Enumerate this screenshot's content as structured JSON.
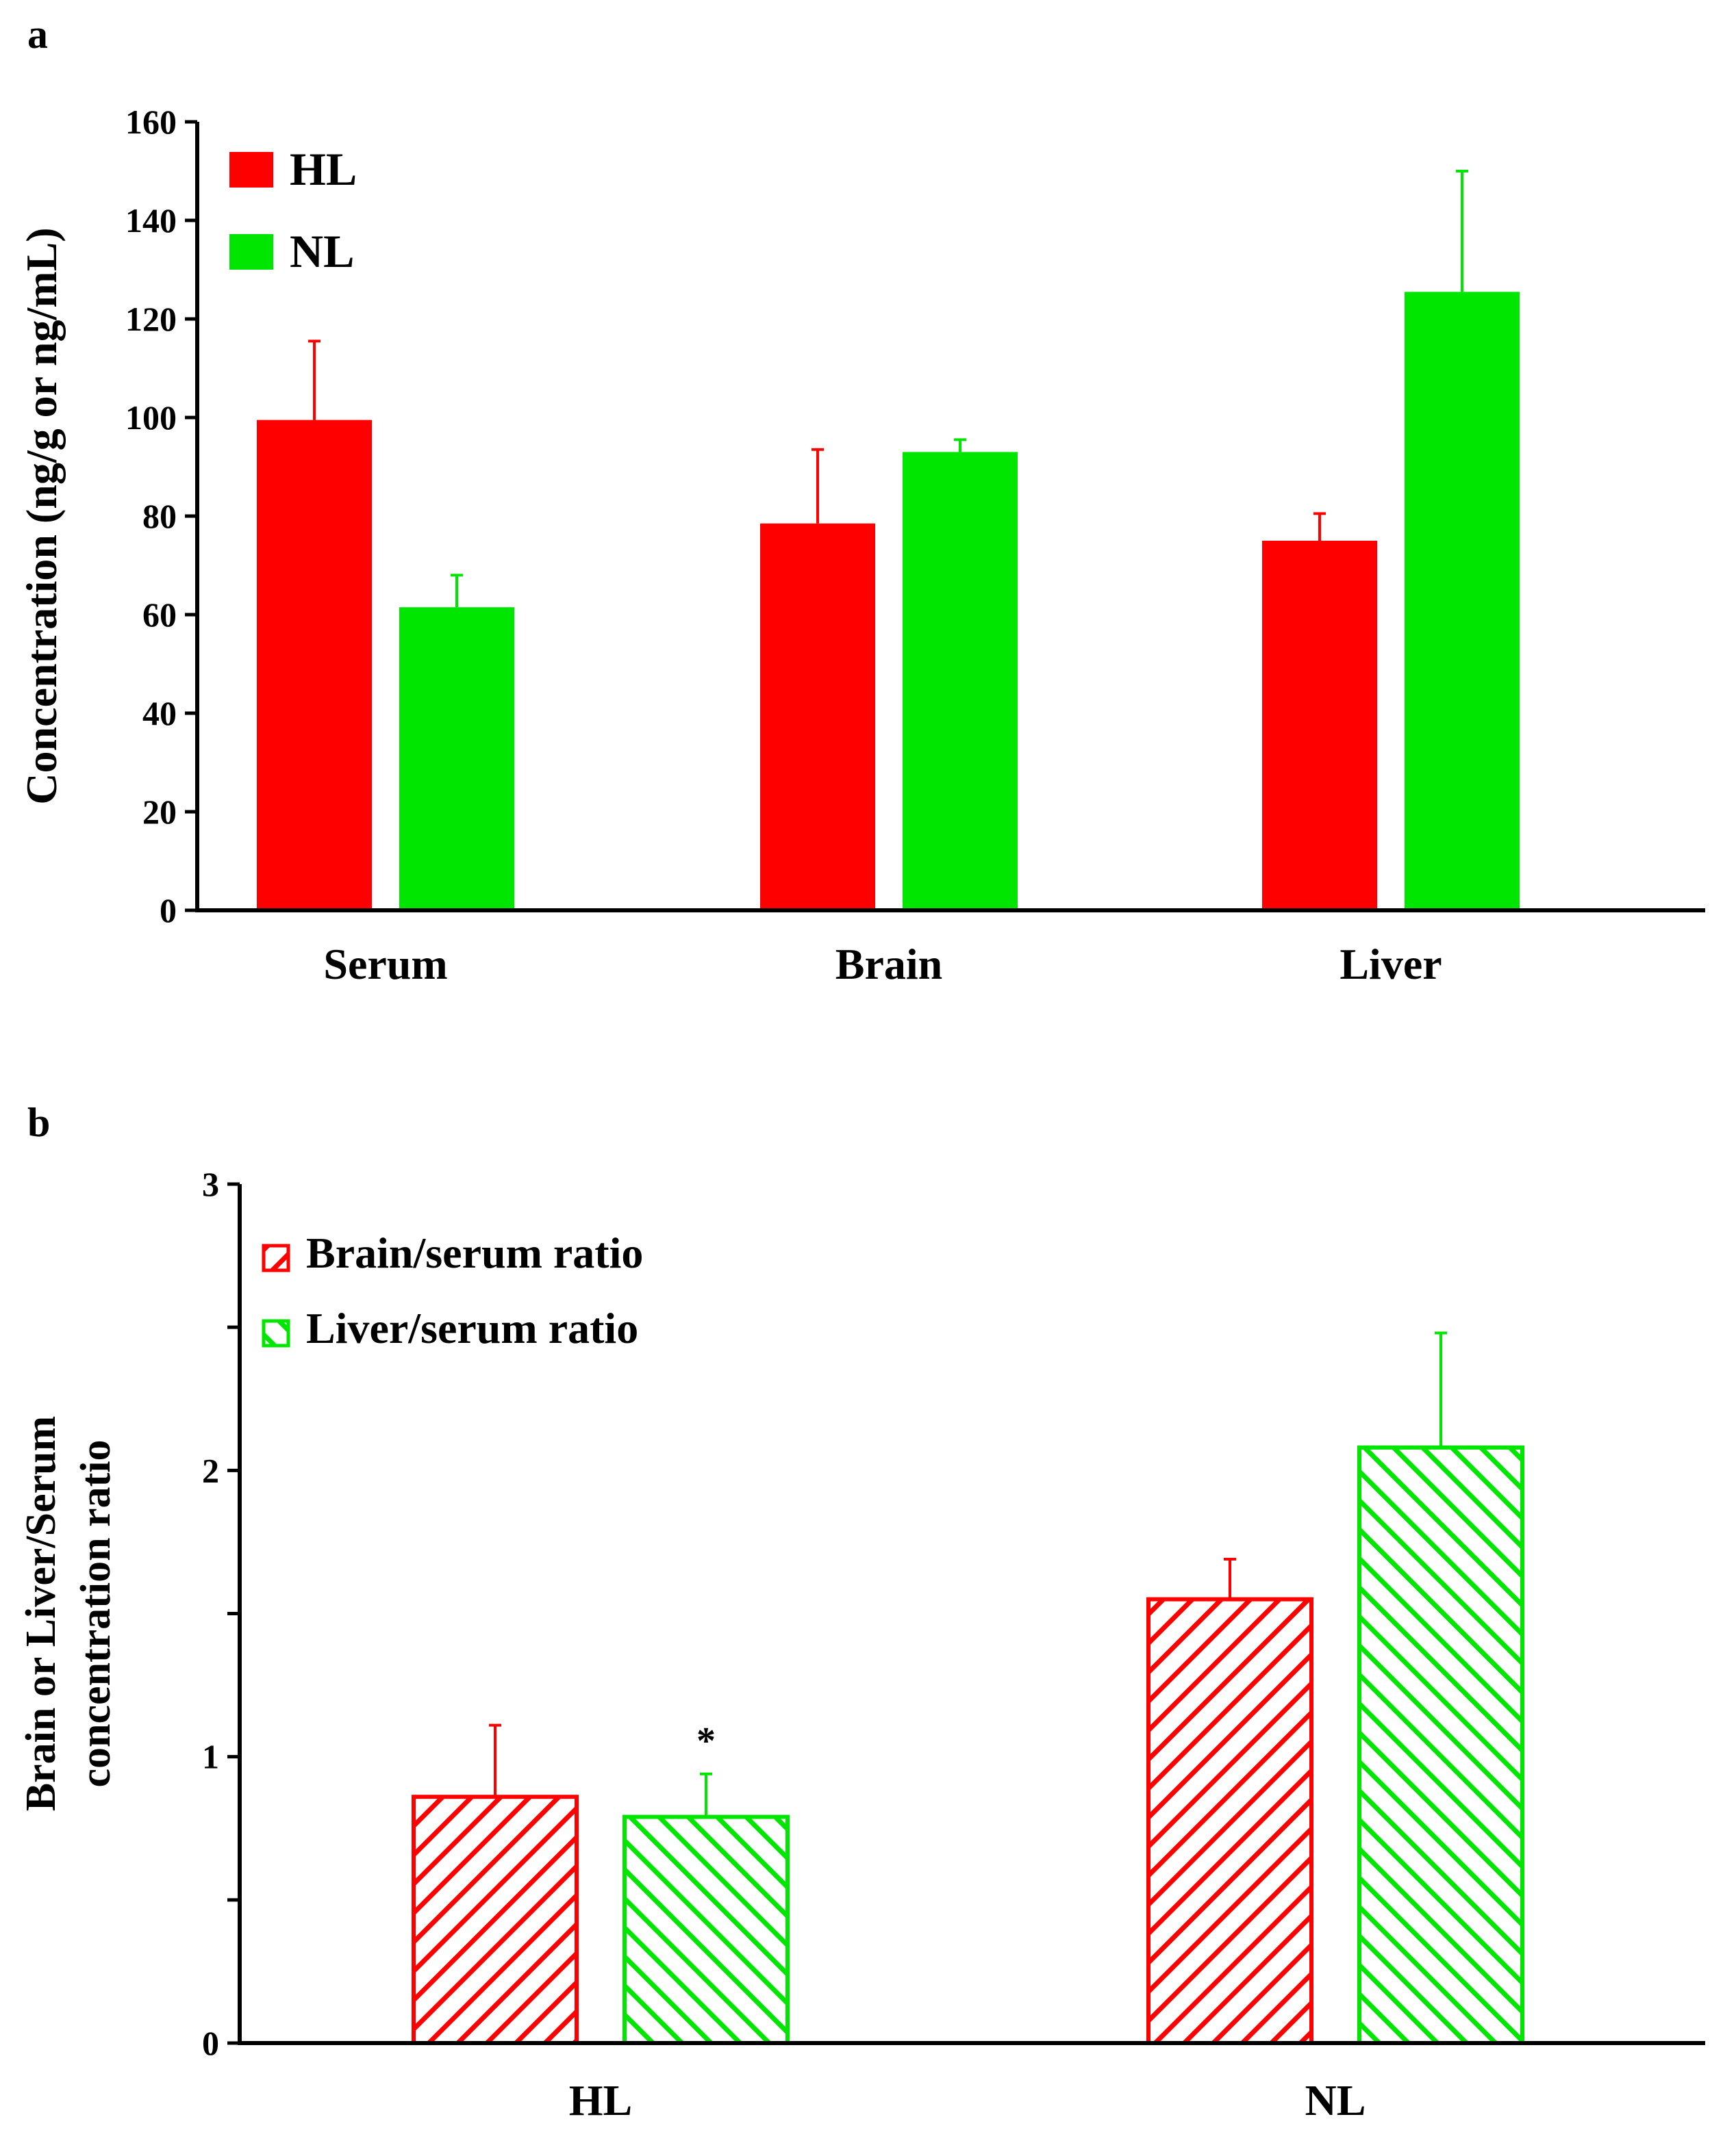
{
  "colors": {
    "red": "#ff0000",
    "green": "#00e600",
    "axis": "#000000"
  },
  "chart_data": [
    {
      "panel": "a",
      "type": "bar",
      "ylabel": "Concentration (ng/g or ng/mL)",
      "xlabel": "",
      "ylim": [
        0,
        160
      ],
      "yticks": [
        0,
        20,
        40,
        60,
        80,
        100,
        120,
        140,
        160
      ],
      "ytick_labels": [
        "0",
        "20",
        "40",
        "60",
        "80",
        "100",
        "120",
        "140",
        "160"
      ],
      "categories": [
        "Serum",
        "Brain",
        "Liver"
      ],
      "legend_position": "top-left",
      "series": [
        {
          "name": "HL",
          "color": "#ff0000",
          "pattern": "solid",
          "values": [
            99.5,
            78.5,
            75
          ],
          "errors": [
            16,
            15,
            5.5
          ]
        },
        {
          "name": "NL",
          "color": "#00e600",
          "pattern": "solid",
          "values": [
            61.5,
            93,
            125.5
          ],
          "errors": [
            6.5,
            2.5,
            24.5
          ]
        }
      ]
    },
    {
      "panel": "b",
      "type": "bar",
      "ylabel_lines": [
        "Brain or Liver/Serum",
        "concentration ratio"
      ],
      "xlabel": "",
      "ylim": [
        0,
        3
      ],
      "yticks": [
        0,
        0.5,
        1,
        1.5,
        2,
        2.5,
        3
      ],
      "ytick_labels": [
        "0",
        "",
        "1",
        "",
        "2",
        "",
        "3"
      ],
      "categories": [
        "HL",
        "NL"
      ],
      "legend_position": "top-left",
      "series": [
        {
          "name": "Brain/serum  ratio",
          "color": "#ff0000",
          "pattern": "hatch-backslash",
          "values": [
            0.86,
            1.55
          ],
          "errors": [
            0.25,
            0.14
          ]
        },
        {
          "name": "Liver/serum  ratio",
          "color": "#00e600",
          "pattern": "hatch-slash",
          "values": [
            0.79,
            2.08
          ],
          "errors": [
            0.15,
            0.4
          ]
        }
      ],
      "annotations": [
        {
          "text": "*",
          "series": 1,
          "category": 0
        }
      ]
    }
  ]
}
